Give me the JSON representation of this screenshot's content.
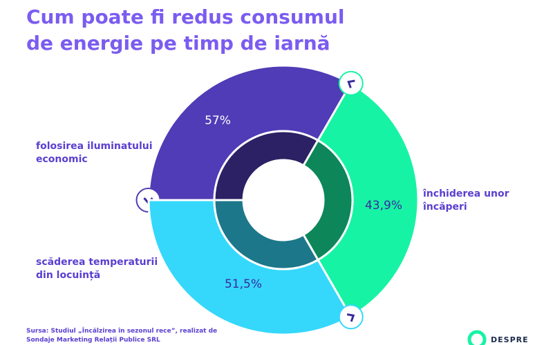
{
  "chart_data": {
    "type": "donut",
    "title": "Cum poate fi redus consumul de energie pe timp de iarnă",
    "categories": [
      "folosirea iluminatului economic",
      "închiderea unor încăperi",
      "scăderea temperaturii din locuință"
    ],
    "values": [
      57,
      43.9,
      51.5
    ],
    "value_labels": [
      "57%",
      "43,9%",
      "51,5%"
    ],
    "colors": [
      "#4f3cb6",
      "#17f3a4",
      "#35d8fb"
    ],
    "source": "Sursa: Studiul „Încălzirea în sezonul rece”, realizat de Sondaje Marketing Relații Publice SRL",
    "logo": "DESPRE"
  }
}
